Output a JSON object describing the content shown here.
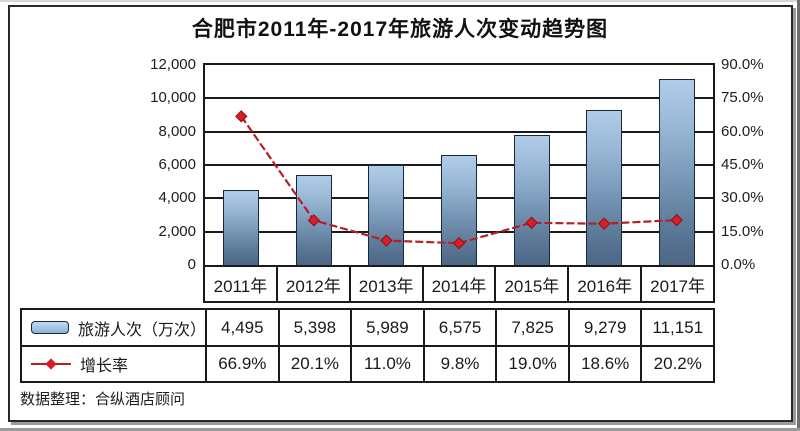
{
  "page": {
    "title": "合肥市2011年-2017年旅游人次变动趋势图",
    "source_note": "数据整理：合纵酒店顾问"
  },
  "legend": {
    "bar_label": "旅游人次（万次）",
    "line_label": "增长率"
  },
  "chart_data": {
    "type": "bar",
    "subtype": "combo bar + line, dual axis",
    "title": "合肥市2011年-2017年旅游人次变动趋势图",
    "categories": [
      "2011年",
      "2012年",
      "2013年",
      "2014年",
      "2015年",
      "2016年",
      "2017年"
    ],
    "series": [
      {
        "name": "旅游人次（万次）",
        "type": "bar",
        "axis": "left",
        "values": [
          4495,
          5398,
          5989,
          6575,
          7825,
          9279,
          11151
        ],
        "labels": [
          "4,495",
          "5,398",
          "5,989",
          "6,575",
          "7,825",
          "9,279",
          "11,151"
        ]
      },
      {
        "name": "增长率",
        "type": "line",
        "axis": "right",
        "marker": "diamond",
        "values": [
          66.9,
          20.1,
          11.0,
          9.8,
          19.0,
          18.6,
          20.2
        ],
        "labels": [
          "66.9%",
          "20.1%",
          "11.0%",
          "9.8%",
          "19.0%",
          "18.6%",
          "20.2%"
        ]
      }
    ],
    "left_axis": {
      "min": 0,
      "max": 12000,
      "step": 2000,
      "tick_labels_top_to_bottom": [
        "12,000",
        "10,000",
        "8,000",
        "6,000",
        "4,000",
        "2,000",
        "0"
      ]
    },
    "right_axis": {
      "min": 0,
      "max": 90,
      "step": 15,
      "tick_labels_top_to_bottom": [
        "90.0%",
        "75.0%",
        "60.0%",
        "45.0%",
        "30.0%",
        "15.0%",
        "0.0%"
      ]
    },
    "grid": "horizontal gridlines on",
    "legend_position": "table first column (bottom-left)",
    "source": "数据整理：合纵酒店顾问",
    "colors": {
      "bar_top": "#b0cce9",
      "bar_bottom": "#4d6786",
      "bar_border": "#15293e",
      "line": "#b42025",
      "marker": "#d81e26",
      "axis_and_borders": "#1a1a1a"
    }
  }
}
